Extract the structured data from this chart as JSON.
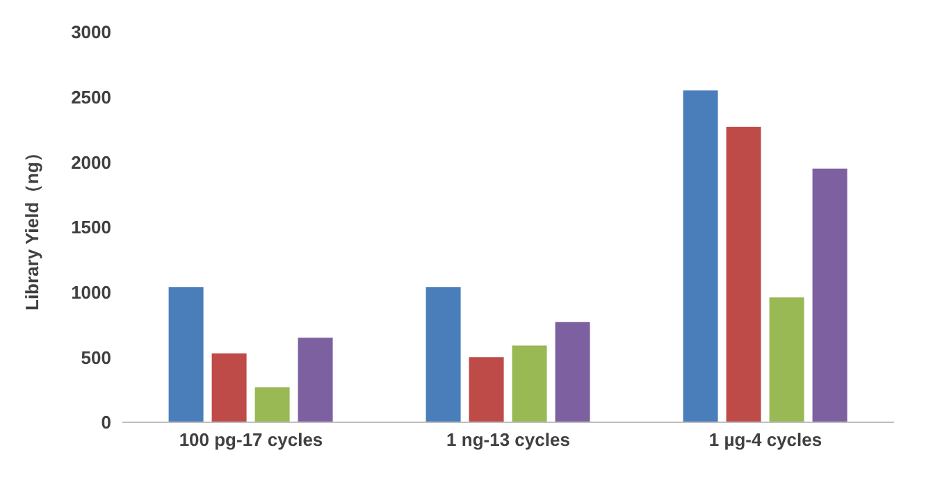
{
  "chart_data": {
    "type": "bar",
    "ylabel": "Library Yield（ng）",
    "categories": [
      "100 pg-17 cycles",
      "1 ng-13 cycles",
      "1 µg-4 cycles"
    ],
    "series": [
      {
        "color": "#4a7ebb",
        "values": [
          1040,
          1040,
          2550
        ]
      },
      {
        "color": "#be4b48",
        "values": [
          530,
          500,
          2270
        ]
      },
      {
        "color": "#98b954",
        "values": [
          270,
          590,
          960
        ]
      },
      {
        "color": "#7d60a0",
        "values": [
          650,
          770,
          1950
        ]
      }
    ],
    "ylim": [
      0,
      3000
    ],
    "yticks": [
      0,
      500,
      1000,
      1500,
      2000,
      2500,
      3000
    ],
    "grid": false
  }
}
